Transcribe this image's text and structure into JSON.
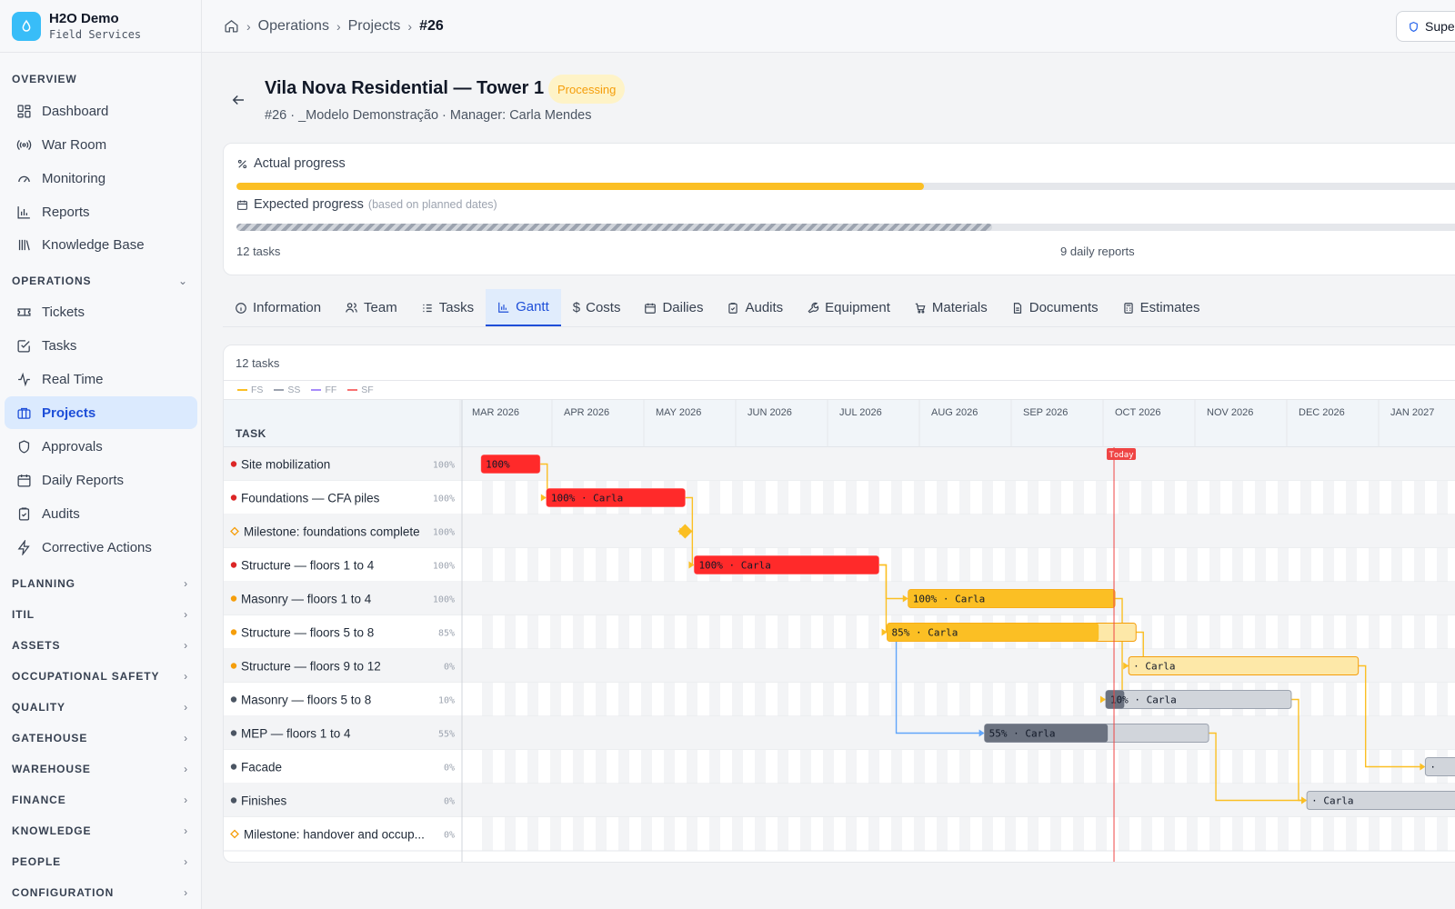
{
  "brand": {
    "name": "H2O Demo",
    "subtitle": "Field Services"
  },
  "sidebar": {
    "overview_label": "OVERVIEW",
    "overview": [
      {
        "label": "Dashboard",
        "icon": "dashboard-icon"
      },
      {
        "label": "War Room",
        "icon": "broadcast-icon"
      },
      {
        "label": "Monitoring",
        "icon": "gauge-icon"
      },
      {
        "label": "Reports",
        "icon": "bar-chart-icon"
      },
      {
        "label": "Knowledge Base",
        "icon": "library-icon"
      }
    ],
    "operations_label": "OPERATIONS",
    "operations": [
      {
        "label": "Tickets",
        "icon": "ticket-icon"
      },
      {
        "label": "Tasks",
        "icon": "check-square-icon"
      },
      {
        "label": "Real Time",
        "icon": "activity-icon"
      },
      {
        "label": "Projects",
        "icon": "briefcase-icon"
      },
      {
        "label": "Approvals",
        "icon": "shield-icon"
      },
      {
        "label": "Daily Reports",
        "icon": "calendar-icon"
      },
      {
        "label": "Audits",
        "icon": "clipboard-check-icon"
      },
      {
        "label": "Corrective Actions",
        "icon": "zap-icon"
      }
    ],
    "groups": [
      "PLANNING",
      "ITIL",
      "ASSETS",
      "OCCUPATIONAL SAFETY",
      "QUALITY",
      "GATEHOUSE",
      "WAREHOUSE",
      "FINANCE",
      "KNOWLEDGE",
      "PEOPLE",
      "CONFIGURATION"
    ]
  },
  "breadcrumb": {
    "items": [
      "Operations",
      "Projects"
    ],
    "current": "#26"
  },
  "topbar": {
    "super_label": "Super"
  },
  "project": {
    "title": "Vila Nova Residential — Tower 1",
    "status": "Processing",
    "subtitle": "#26 · _Modelo Demonstração · Manager: Carla Mendes"
  },
  "progress": {
    "actual_label": "Actual progress",
    "actual_fraction": 0.548,
    "expected_label": "Expected progress",
    "expected_note": "(based on planned dates)",
    "expected_fraction": 0.602,
    "tasks_count": "12 tasks",
    "dailies_count": "9 daily reports"
  },
  "tabs": [
    {
      "label": "Information",
      "icon": "info-icon",
      "active": false
    },
    {
      "label": "Team",
      "icon": "users-icon",
      "active": false
    },
    {
      "label": "Tasks",
      "icon": "list-icon",
      "active": false
    },
    {
      "label": "Gantt",
      "icon": "gantt-icon",
      "active": true
    },
    {
      "label": "Costs",
      "icon": "dollar-icon",
      "active": false
    },
    {
      "label": "Dailies",
      "icon": "calendar-icon",
      "active": false
    },
    {
      "label": "Audits",
      "icon": "clipboard-check-icon",
      "active": false
    },
    {
      "label": "Equipment",
      "icon": "wrench-icon",
      "active": false
    },
    {
      "label": "Materials",
      "icon": "cart-icon",
      "active": false
    },
    {
      "label": "Documents",
      "icon": "document-icon",
      "active": false
    },
    {
      "label": "Estimates",
      "icon": "calculator-icon",
      "active": false
    }
  ],
  "gantt": {
    "count_label": "12 tasks",
    "legend": [
      {
        "label": "FS",
        "color": "#fbbf24"
      },
      {
        "label": "SS",
        "color": "#9ca3af"
      },
      {
        "label": "FF",
        "color": "#a78bfa"
      },
      {
        "label": "SF",
        "color": "#f87171"
      }
    ],
    "task_header": "TASK",
    "today_label": "Today",
    "today_month": 7.02,
    "months": [
      "MAR 2026",
      "APR 2026",
      "MAY 2026",
      "JUN 2026",
      "JUL 2026",
      "AUG 2026",
      "SEP 2026",
      "OCT 2026",
      "NOV 2026",
      "DEC 2026",
      "JAN 2027"
    ],
    "tasks": [
      {
        "name": "Site mobilization",
        "pct": "100%",
        "kind": "red",
        "start": 0.13,
        "end": 0.77,
        "progress": 1.0,
        "bar_label": "100%",
        "milestone": false
      },
      {
        "name": "Foundations — CFA piles",
        "pct": "100%",
        "kind": "red",
        "start": 0.84,
        "end": 2.35,
        "progress": 1.0,
        "bar_label": "100% · Carla",
        "milestone": false
      },
      {
        "name": "Milestone: foundations complete",
        "pct": "100%",
        "kind": "milestone",
        "start": 2.35,
        "end": 2.35,
        "progress": 1.0,
        "bar_label": "",
        "milestone": true
      },
      {
        "name": "Structure — floors 1 to 4",
        "pct": "100%",
        "kind": "red",
        "start": 2.45,
        "end": 4.46,
        "progress": 1.0,
        "bar_label": "100% · Carla",
        "milestone": false
      },
      {
        "name": "Masonry — floors 1 to 4",
        "pct": "100%",
        "kind": "amber",
        "start": 4.78,
        "end": 7.03,
        "progress": 1.0,
        "bar_label": "100% · Carla",
        "milestone": false
      },
      {
        "name": "Structure — floors 5 to 8",
        "pct": "85%",
        "kind": "amber",
        "start": 4.55,
        "end": 7.26,
        "progress": 0.85,
        "bar_label": "85% · Carla",
        "milestone": false
      },
      {
        "name": "Structure — floors 9 to 12",
        "pct": "0%",
        "kind": "amber",
        "start": 7.18,
        "end": 9.68,
        "progress": 0.0,
        "bar_label": "· Carla",
        "milestone": false
      },
      {
        "name": "Masonry — floors 5 to 8",
        "pct": "10%",
        "kind": "gray",
        "start": 6.93,
        "end": 8.95,
        "progress": 0.1,
        "bar_label": "10% · Carla",
        "milestone": false
      },
      {
        "name": "MEP — floors 1 to 4",
        "pct": "55%",
        "kind": "gray",
        "start": 5.61,
        "end": 8.05,
        "progress": 0.55,
        "bar_label": "55% · Carla",
        "milestone": false
      },
      {
        "name": "Facade",
        "pct": "0%",
        "kind": "gray",
        "start": 10.41,
        "end": 11.2,
        "progress": 0.0,
        "bar_label": "·",
        "milestone": false
      },
      {
        "name": "Finishes",
        "pct": "0%",
        "kind": "gray",
        "start": 9.12,
        "end": 11.4,
        "progress": 0.0,
        "bar_label": "· Carla",
        "milestone": false
      },
      {
        "name": "Milestone: handover and occup...",
        "pct": "0%",
        "kind": "milestone",
        "start": 11.5,
        "end": 11.5,
        "progress": 0.0,
        "bar_label": "",
        "milestone": true
      }
    ],
    "links": [
      {
        "from": 0,
        "to": 1,
        "type": "FS"
      },
      {
        "from": 1,
        "to": 2,
        "type": "FS"
      },
      {
        "from": 2,
        "to": 3,
        "type": "FS"
      },
      {
        "from": 3,
        "to": 4,
        "type": "FS"
      },
      {
        "from": 3,
        "to": 5,
        "type": "FS"
      },
      {
        "from": 4,
        "to": 7,
        "type": "FS"
      },
      {
        "from": 5,
        "to": 6,
        "type": "FS"
      },
      {
        "from": 5,
        "to": 8,
        "type": "SS"
      },
      {
        "from": 6,
        "to": 9,
        "type": "FS"
      },
      {
        "from": 7,
        "to": 10,
        "type": "FS"
      },
      {
        "from": 8,
        "to": 10,
        "type": "FS"
      }
    ],
    "colors": {
      "red": "#ff2a2a",
      "amber": "#fbbf24",
      "gray": "#6b7280",
      "today": "#ef4444"
    }
  }
}
